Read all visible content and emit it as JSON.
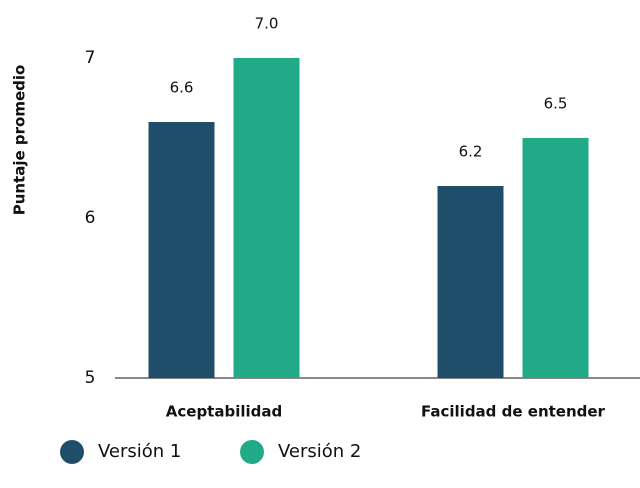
{
  "chart_data": {
    "type": "bar",
    "y_axis_label": "Puntaje promedio",
    "categories": [
      "Aceptabilidad",
      "Facilidad de entender"
    ],
    "series": [
      {
        "name": "Versión 1",
        "color": "#1f4e6b",
        "values": [
          6.6,
          6.2
        ],
        "value_labels": [
          "6.6",
          "6.2"
        ]
      },
      {
        "name": "Versión 2",
        "color": "#22a987",
        "values": [
          7.0,
          6.5
        ],
        "value_labels": [
          "7.0",
          "6.5"
        ]
      }
    ],
    "ylim": [
      5,
      7
    ],
    "yticks": [
      5,
      6,
      7
    ],
    "grid": false
  }
}
